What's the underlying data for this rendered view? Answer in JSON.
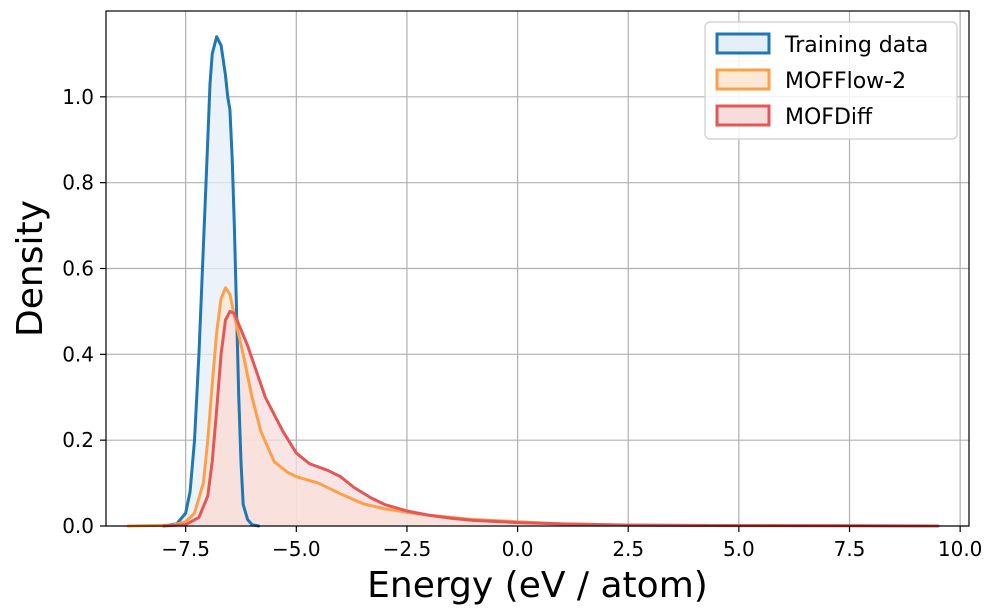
{
  "chart_data": {
    "type": "area",
    "title": "",
    "xlabel": "Energy (eV / atom)",
    "ylabel": "Density",
    "xlim": [
      -9.3,
      10.2
    ],
    "ylim": [
      0,
      1.2
    ],
    "x_ticks": [
      -7.5,
      -5.0,
      -2.5,
      0.0,
      2.5,
      5.0,
      7.5,
      10.0
    ],
    "x_tick_labels": [
      "−7.5",
      "−5.0",
      "−2.5",
      "0.0",
      "2.5",
      "5.0",
      "7.5",
      "10.0"
    ],
    "y_ticks": [
      0.0,
      0.2,
      0.4,
      0.6,
      0.8,
      1.0
    ],
    "y_tick_labels": [
      "0.0",
      "0.2",
      "0.4",
      "0.6",
      "0.8",
      "1.0"
    ],
    "grid": true,
    "legend_position": "top-right",
    "series": [
      {
        "name": "Training data",
        "color": "#1f77b4",
        "fill": "#e6eef8",
        "points": [
          [
            -8.0,
            0.0
          ],
          [
            -7.7,
            0.005
          ],
          [
            -7.5,
            0.03
          ],
          [
            -7.4,
            0.08
          ],
          [
            -7.3,
            0.2
          ],
          [
            -7.2,
            0.4
          ],
          [
            -7.1,
            0.65
          ],
          [
            -7.0,
            0.9
          ],
          [
            -6.95,
            1.03
          ],
          [
            -6.9,
            1.1
          ],
          [
            -6.8,
            1.14
          ],
          [
            -6.7,
            1.12
          ],
          [
            -6.6,
            1.05
          ],
          [
            -6.55,
            1.0
          ],
          [
            -6.5,
            0.97
          ],
          [
            -6.45,
            0.86
          ],
          [
            -6.4,
            0.7
          ],
          [
            -6.35,
            0.5
          ],
          [
            -6.3,
            0.3
          ],
          [
            -6.25,
            0.15
          ],
          [
            -6.2,
            0.05
          ],
          [
            -6.1,
            0.015
          ],
          [
            -6.0,
            0.003
          ],
          [
            -5.85,
            0.0
          ]
        ]
      },
      {
        "name": "MOFFlow-2",
        "color": "#ff9f4a",
        "fill": "#fde8d5",
        "points": [
          [
            -8.8,
            0.0
          ],
          [
            -7.8,
            0.002
          ],
          [
            -7.5,
            0.01
          ],
          [
            -7.3,
            0.03
          ],
          [
            -7.1,
            0.1
          ],
          [
            -7.0,
            0.2
          ],
          [
            -6.9,
            0.33
          ],
          [
            -6.8,
            0.45
          ],
          [
            -6.7,
            0.53
          ],
          [
            -6.6,
            0.555
          ],
          [
            -6.5,
            0.54
          ],
          [
            -6.4,
            0.49
          ],
          [
            -6.2,
            0.4
          ],
          [
            -6.0,
            0.3
          ],
          [
            -5.8,
            0.22
          ],
          [
            -5.5,
            0.15
          ],
          [
            -5.2,
            0.125
          ],
          [
            -5.0,
            0.115
          ],
          [
            -4.5,
            0.1
          ],
          [
            -4.0,
            0.075
          ],
          [
            -3.5,
            0.052
          ],
          [
            -3.0,
            0.04
          ],
          [
            -2.5,
            0.032
          ],
          [
            -2.0,
            0.025
          ],
          [
            -1.5,
            0.02
          ],
          [
            -1.0,
            0.015
          ],
          [
            0.0,
            0.01
          ],
          [
            1.0,
            0.005
          ],
          [
            2.5,
            0.002
          ],
          [
            5.0,
            0.001
          ],
          [
            7.5,
            0.0005
          ],
          [
            9.5,
            0.0
          ]
        ]
      },
      {
        "name": "MOFDiff",
        "color": "#e45756",
        "fill": "#f7dcdc",
        "points": [
          [
            -8.0,
            0.0
          ],
          [
            -7.5,
            0.003
          ],
          [
            -7.2,
            0.02
          ],
          [
            -7.0,
            0.07
          ],
          [
            -6.9,
            0.15
          ],
          [
            -6.8,
            0.27
          ],
          [
            -6.7,
            0.4
          ],
          [
            -6.6,
            0.48
          ],
          [
            -6.5,
            0.5
          ],
          [
            -6.4,
            0.495
          ],
          [
            -6.3,
            0.47
          ],
          [
            -6.1,
            0.42
          ],
          [
            -5.9,
            0.36
          ],
          [
            -5.7,
            0.3
          ],
          [
            -5.5,
            0.26
          ],
          [
            -5.3,
            0.22
          ],
          [
            -5.0,
            0.17
          ],
          [
            -4.7,
            0.145
          ],
          [
            -4.3,
            0.13
          ],
          [
            -4.0,
            0.115
          ],
          [
            -3.7,
            0.09
          ],
          [
            -3.3,
            0.065
          ],
          [
            -3.0,
            0.05
          ],
          [
            -2.5,
            0.035
          ],
          [
            -2.0,
            0.025
          ],
          [
            -1.5,
            0.018
          ],
          [
            -1.0,
            0.013
          ],
          [
            0.0,
            0.008
          ],
          [
            1.0,
            0.005
          ],
          [
            2.5,
            0.002
          ],
          [
            5.0,
            0.001
          ],
          [
            7.5,
            0.0005
          ],
          [
            9.5,
            0.0
          ]
        ]
      }
    ]
  }
}
